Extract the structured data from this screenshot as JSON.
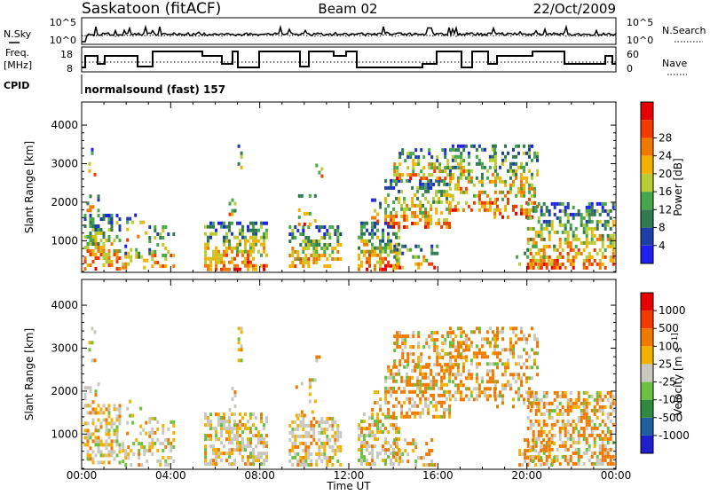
{
  "header": {
    "station": "Saskatoon (fitACF)",
    "beam": "Beam 02",
    "date": "22/Oct/2009"
  },
  "top_panel": {
    "left_label": "N.Sky",
    "left_ticks": [
      "10^5",
      "10^0"
    ],
    "right_ticks": [
      "10^5",
      "10^0"
    ],
    "right_label": "N.Search"
  },
  "freq_panel": {
    "left_label_line1": "Freq.",
    "left_label_line2": "[MHz]",
    "left_ticks": [
      "18",
      "8"
    ],
    "right_ticks": [
      "60",
      "0"
    ],
    "right_label": "Nave"
  },
  "cpid": {
    "label": "CPID",
    "program": "normalsound (fast) 157"
  },
  "x_axis": {
    "ticks": [
      "00:00",
      "04:00",
      "08:00",
      "12:00",
      "16:00",
      "20:00",
      "00:00"
    ],
    "label": "Time UT"
  },
  "chart_data": [
    {
      "type": "heatmap",
      "title": "Power",
      "ylabel": "Slant Range [km]",
      "yticks": [
        "1000",
        "2000",
        "3000",
        "4000"
      ],
      "ylim": [
        180,
        4600
      ],
      "xlim": [
        0,
        24
      ],
      "xlabel": "Time UT",
      "colorbar_label": "Power [dB]",
      "colorbar_ticks": [
        "4",
        "8",
        "12",
        "16",
        "20",
        "24",
        "28"
      ],
      "colorbar_colors": [
        "#1f1ff0",
        "#1f3fa8",
        "#2f7a4f",
        "#46a64a",
        "#b8cc33",
        "#f2b200",
        "#f07a00",
        "#f03a00",
        "#e80000"
      ]
    },
    {
      "type": "heatmap",
      "title": "Velocity",
      "ylabel": "Slant Range [km]",
      "yticks": [
        "1000",
        "2000",
        "3000",
        "4000"
      ],
      "ylim": [
        180,
        4600
      ],
      "xlim": [
        0,
        24
      ],
      "xlabel": "Time UT",
      "colorbar_label": "Velocity [m s^-1]",
      "colorbar_ticks": [
        "1000",
        "500",
        "100",
        "25",
        "-25",
        "-100",
        "-500",
        "-1000"
      ],
      "colorbar_colors": [
        "#1f1fd0",
        "#1f5fa0",
        "#2f8a3f",
        "#6ac040",
        "#c8c8c0",
        "#f2b200",
        "#f07a00",
        "#f03a00",
        "#e80000"
      ]
    }
  ]
}
